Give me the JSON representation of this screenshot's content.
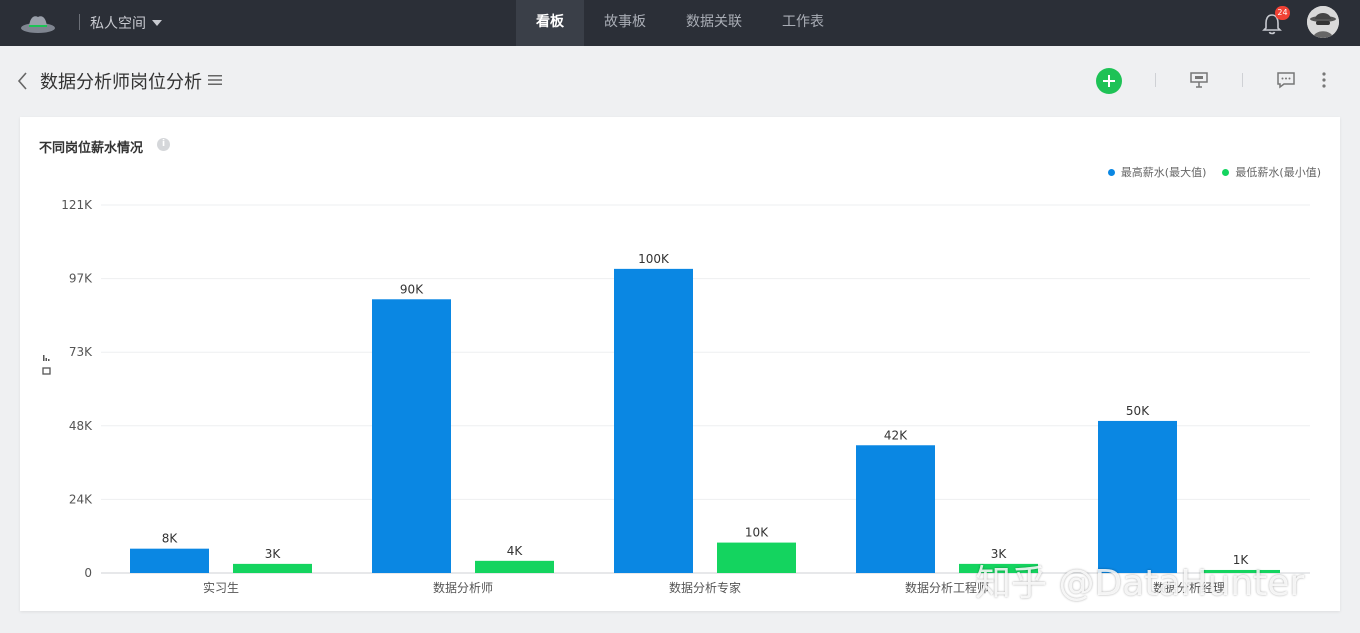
{
  "topbar": {
    "space_label": "私人空间",
    "nav": [
      {
        "label": "看板",
        "active": true
      },
      {
        "label": "故事板",
        "active": false
      },
      {
        "label": "数据关联",
        "active": false
      },
      {
        "label": "工作表",
        "active": false
      }
    ],
    "notification_count": "24"
  },
  "page": {
    "title": "数据分析师岗位分析"
  },
  "colors": {
    "max": "#0a87e3",
    "min": "#14d45f",
    "add_button": "#1ec256"
  },
  "card": {
    "title": "不同岗位薪水情况"
  },
  "chart_data": {
    "type": "bar",
    "categories": [
      "实习生",
      "数据分析师",
      "数据分析专家",
      "数据分析工程师",
      "数据分析经理"
    ],
    "series": [
      {
        "name": "最高薪水(最大值)",
        "values": [
          8000,
          90000,
          100000,
          42000,
          50000
        ],
        "labels": [
          "8K",
          "90K",
          "100K",
          "42K",
          "50K"
        ]
      },
      {
        "name": "最低薪水(最小值)",
        "values": [
          3000,
          4000,
          10000,
          3000,
          1000
        ],
        "labels": [
          "3K",
          "4K",
          "10K",
          "3K",
          "1K"
        ]
      }
    ],
    "yticks": [
      "0",
      "24K",
      "48K",
      "73K",
      "97K",
      "121K"
    ],
    "ylim": [
      0,
      121000
    ],
    "grid": true,
    "legend_position": "top-right"
  },
  "watermark": "知乎 @DataHunter"
}
